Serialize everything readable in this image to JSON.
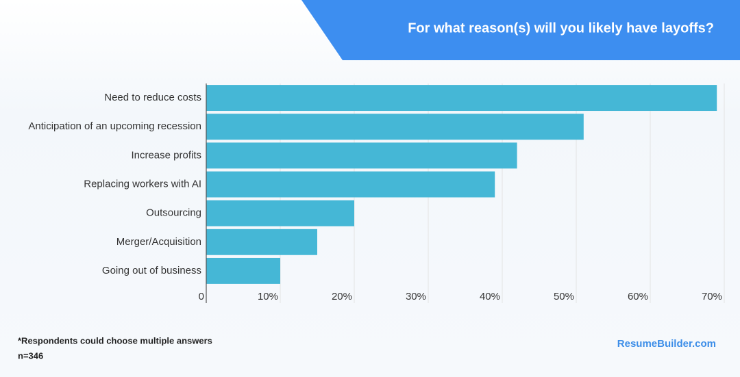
{
  "chart_data": {
    "type": "bar",
    "orientation": "horizontal",
    "title": "For what reason(s) will you likely have layoffs?",
    "categories": [
      "Need to reduce costs",
      "Anticipation of an upcoming recession",
      "Increase profits",
      "Replacing workers with AI",
      "Outsourcing",
      "Merger/Acquisition",
      "Going out of business"
    ],
    "values": [
      69,
      51,
      42,
      39,
      20,
      15,
      10
    ],
    "color": "#45b7d6",
    "xlim": [
      0,
      70
    ],
    "xticks": [
      0,
      {
        "value": 10,
        "label": "10%"
      },
      {
        "value": 20,
        "label": "20%"
      },
      {
        "value": 30,
        "label": "30%"
      },
      {
        "value": 40,
        "label": "40%"
      },
      {
        "value": 50,
        "label": "50%"
      },
      {
        "value": 60,
        "label": "60%"
      },
      {
        "value": 70,
        "label": "70%"
      }
    ],
    "grid": true,
    "footnotes": [
      "*Respondents could choose multiple answers",
      "n=346"
    ],
    "brand": "ResumeBuilder.com"
  }
}
